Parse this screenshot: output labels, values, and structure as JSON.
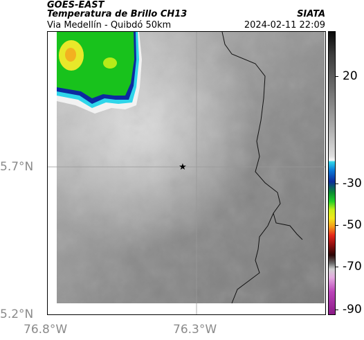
{
  "header": {
    "satellite": "GOES-EAST",
    "product": "Temperatura de Brillo CH13",
    "source": "SIATA",
    "route": "Via Medellín - Quibdó 50km",
    "datetime": "2024-02-11 22:09"
  },
  "axes": {
    "lat_labels": [
      "5.7°N",
      "5.2°N"
    ],
    "lon_labels": [
      "76.8°W",
      "76.3°W"
    ]
  },
  "colorbar": {
    "labels": [
      "20",
      "-30",
      "-50",
      "-70",
      "-90"
    ]
  },
  "map": {
    "marker": "star",
    "colors": {
      "cold_cloud_green": "#18c21c",
      "cold_cloud_yellow": "#e8e82a",
      "cloud_edge_blue": "#0c2aa0",
      "cloud_edge_cyan": "#2fd6ea",
      "ground_gray": "#8c8c8c"
    }
  }
}
